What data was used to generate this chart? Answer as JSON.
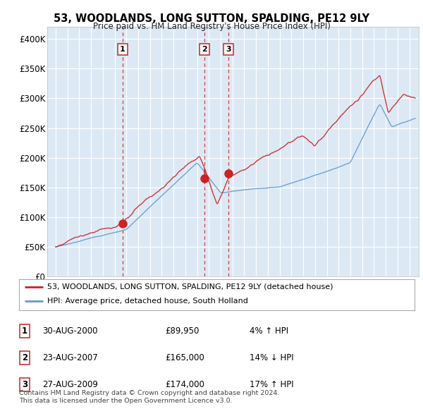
{
  "title": "53, WOODLANDS, LONG SUTTON, SPALDING, PE12 9LY",
  "subtitle": "Price paid vs. HM Land Registry's House Price Index (HPI)",
  "ylabel_ticks": [
    "£0",
    "£50K",
    "£100K",
    "£150K",
    "£200K",
    "£250K",
    "£300K",
    "£350K",
    "£400K"
  ],
  "ytick_values": [
    0,
    50000,
    100000,
    150000,
    200000,
    250000,
    300000,
    350000,
    400000
  ],
  "fig_bg": "#ffffff",
  "plot_bg": "#dce9f5",
  "line_red": "#cc2222",
  "line_blue": "#6699cc",
  "vline_color": "#cc2222",
  "sale_dates": [
    2000.664,
    2007.644,
    2009.655
  ],
  "sale_values": [
    89950,
    165000,
    174000
  ],
  "sale_labels": [
    "1",
    "2",
    "3"
  ],
  "legend_entries": [
    {
      "color": "#cc2222",
      "text": "53, WOODLANDS, LONG SUTTON, SPALDING, PE12 9LY (detached house)"
    },
    {
      "color": "#6699cc",
      "text": "HPI: Average price, detached house, South Holland"
    }
  ],
  "table_rows": [
    {
      "num": "1",
      "date": "30-AUG-2000",
      "price": "£89,950",
      "hpi": "4% ↑ HPI"
    },
    {
      "num": "2",
      "date": "23-AUG-2007",
      "price": "£165,000",
      "hpi": "14% ↓ HPI"
    },
    {
      "num": "3",
      "date": "27-AUG-2009",
      "price": "£174,000",
      "hpi": "17% ↑ HPI"
    }
  ],
  "footer": "Contains HM Land Registry data © Crown copyright and database right 2024.\nThis data is licensed under the Open Government Licence v3.0.",
  "xtick_start": 1995,
  "xtick_end": 2025,
  "xlim": [
    1994.3,
    2025.8
  ],
  "ylim": [
    0,
    420000
  ]
}
